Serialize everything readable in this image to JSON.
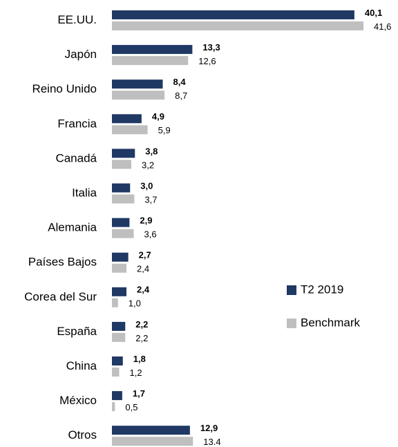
{
  "chart_data": {
    "type": "bar",
    "orientation": "horizontal",
    "categories": [
      "EE.UU.",
      "Japón",
      "Reino Unido",
      "Francia",
      "Canadá",
      "Italia",
      "Alemania",
      "Países Bajos",
      "Corea del Sur",
      "España",
      "China",
      "México",
      "Otros"
    ],
    "series": [
      {
        "name": "T2 2019",
        "color": "#1f3864",
        "values": [
          40.1,
          13.3,
          8.4,
          4.9,
          3.8,
          3.0,
          2.9,
          2.7,
          2.4,
          2.2,
          1.8,
          1.7,
          12.9
        ],
        "value_labels": [
          "40,1",
          "13,3",
          "8,4",
          "4,9",
          "3,8",
          "3,0",
          "2,9",
          "2,7",
          "2,4",
          "2,2",
          "1,8",
          "1,7",
          "12,9"
        ]
      },
      {
        "name": "Benchmark",
        "color": "#bfbfbf",
        "values": [
          41.6,
          12.6,
          8.7,
          5.9,
          3.2,
          3.7,
          3.6,
          2.4,
          1.0,
          2.2,
          1.2,
          0.5,
          13.4
        ],
        "value_labels": [
          "41,6",
          "12,6",
          "8,7",
          "5,9",
          "3,2",
          "3,7",
          "3,6",
          "2,4",
          "1,0",
          "2,2",
          "1,2",
          "0,5",
          "13.4"
        ]
      }
    ],
    "legend": "right"
  }
}
